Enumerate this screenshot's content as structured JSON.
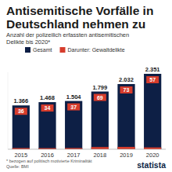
{
  "chart_data": {
    "type": "bar",
    "title": "Antisemitische Vorfälle in Deutschland nehmen zu",
    "subtitle": "Anzahl der polizeilich erfassten antisemitischen Delikte bis 2020*",
    "categories": [
      "2015",
      "2016",
      "2017",
      "2018",
      "2019",
      "2020"
    ],
    "series": [
      {
        "name": "Gesamt",
        "color": "#0d1f45",
        "values": [
          1366,
          1468,
          1504,
          1799,
          2032,
          2351
        ],
        "value_labels": [
          "1.366",
          "1.468",
          "1.504",
          "1.799",
          "2.032",
          "2.351"
        ]
      },
      {
        "name": "Darunter: Gewaltdelikte",
        "color": "#d63c2c",
        "values": [
          36,
          34,
          37,
          69,
          73,
          57
        ]
      }
    ],
    "ylim": [
      0,
      2400
    ],
    "tick_labels": "x",
    "data_labels": true,
    "legend": "top",
    "notes": "* bezogen auf politisch motivierte Kriminalität",
    "source": "Quelle: BMI",
    "brand": "statista"
  }
}
